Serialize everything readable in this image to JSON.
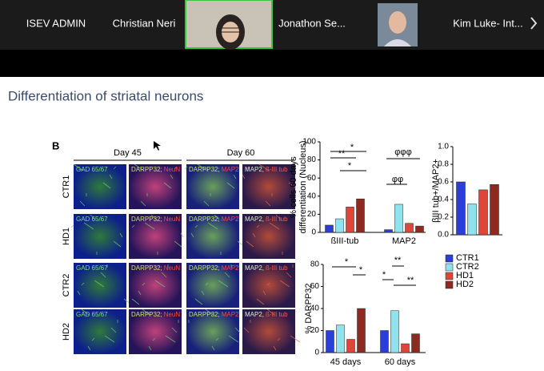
{
  "meeting": {
    "participants": [
      {
        "name": "ISEV ADMIN"
      },
      {
        "name": "Christian Neri"
      },
      {
        "name": "Jonathon Se..."
      },
      {
        "name": "Kim Luke- Int..."
      }
    ]
  },
  "slide": {
    "title": "Differentiation of striatal neurons",
    "figure": {
      "panel_label": "B",
      "columns": [
        "Day 45",
        "Day 60"
      ],
      "rows": [
        "CTR1",
        "HD1",
        "CTR2",
        "HD2"
      ],
      "cell_labels": [
        [
          "GAD 65/67"
        ],
        [
          "DARPP32;",
          "NeuN"
        ],
        [
          "DARPP32;",
          "MAP2"
        ],
        [
          "MAP2,",
          "ß-III tub"
        ]
      ]
    }
  },
  "chart_data": [
    {
      "type": "bar",
      "ylabel": [
        "% cells 60 days",
        "differentiation (Nucleus)"
      ],
      "categories": [
        "ßIII-tub",
        "MAP2"
      ],
      "series": [
        {
          "name": "CTR1",
          "color": "#2b3fd8",
          "values": [
            8,
            3
          ]
        },
        {
          "name": "CTR2",
          "color": "#8fe3ee",
          "values": [
            15,
            31
          ]
        },
        {
          "name": "HD1",
          "color": "#e0453a",
          "values": [
            28,
            10
          ]
        },
        {
          "name": "HD2",
          "color": "#8e2a1f",
          "values": [
            37,
            7
          ]
        }
      ],
      "ylim": [
        0,
        100
      ],
      "yticks": [
        0,
        20,
        40,
        60,
        80,
        100
      ],
      "annotations": [
        "*",
        "**",
        "*",
        "φφφ",
        "φφ"
      ]
    },
    {
      "type": "bar",
      "ylabel": [
        "βIII tub+/MAP2+"
      ],
      "categories": [
        null
      ],
      "series": [
        {
          "name": "CTR1",
          "color": "#2b3fd8",
          "values": [
            0.6
          ]
        },
        {
          "name": "CTR2",
          "color": "#8fe3ee",
          "values": [
            0.35
          ]
        },
        {
          "name": "HD1",
          "color": "#e0453a",
          "values": [
            0.51
          ]
        },
        {
          "name": "HD2",
          "color": "#8e2a1f",
          "values": [
            0.57
          ]
        }
      ],
      "ylim": [
        0,
        1
      ],
      "yticks": [
        {
          "value": 0,
          "label": "0.0"
        },
        0.2,
        0.4,
        0.6,
        0.8,
        {
          "value": 1,
          "label": "1.0"
        }
      ]
    },
    {
      "type": "bar",
      "ylabel": [
        "% DARPP32"
      ],
      "categories": [
        "45 days",
        "60 days"
      ],
      "series": [
        {
          "name": "CTR1",
          "color": "#2b3fd8",
          "values": [
            20,
            20
          ]
        },
        {
          "name": "CTR2",
          "color": "#8fe3ee",
          "values": [
            25,
            38
          ]
        },
        {
          "name": "HD1",
          "color": "#e0453a",
          "values": [
            12,
            8
          ]
        },
        {
          "name": "HD2",
          "color": "#8e2a1f",
          "values": [
            40,
            17
          ]
        }
      ],
      "ylim": [
        0,
        80
      ],
      "yticks": [
        0,
        20,
        40,
        60,
        80
      ],
      "annotations": [
        "*",
        "*",
        "**",
        "*",
        "**"
      ]
    }
  ]
}
